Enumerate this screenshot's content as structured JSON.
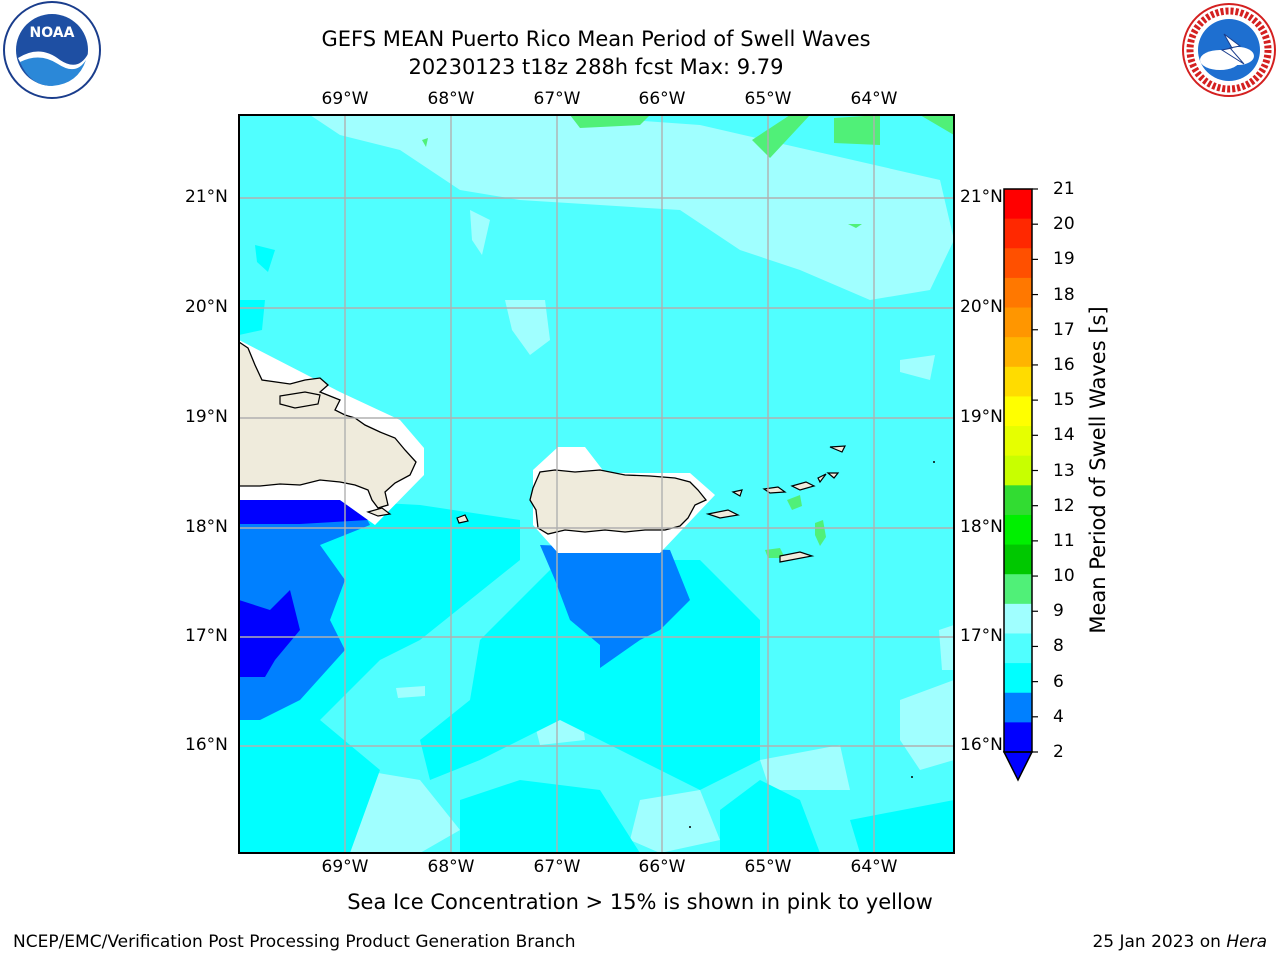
{
  "title": {
    "line1": "GEFS MEAN Puerto Rico Mean Period of Swell Waves",
    "line2": "20230123 t18z 288h fcst   Max: 9.79"
  },
  "map": {
    "lon_ticks": [
      "69°W",
      "68°W",
      "67°W",
      "66°W",
      "65°W",
      "64°W"
    ],
    "lat_ticks": [
      "21°N",
      "20°N",
      "19°N",
      "18°N",
      "17°N",
      "16°N"
    ],
    "ocean_color": "#00ffff",
    "land_color": "#efebdc"
  },
  "colorbar": {
    "label": "Mean Period of Swell Waves [s]",
    "ticks": [
      "21",
      "20",
      "19",
      "18",
      "17",
      "16",
      "15",
      "14",
      "13",
      "12",
      "11",
      "10",
      "9",
      "8",
      "6",
      "4",
      "2"
    ],
    "colors_top_to_bottom": [
      "#ff0000",
      "#ff2800",
      "#ff5000",
      "#ff7800",
      "#ff9600",
      "#ffb400",
      "#ffdc00",
      "#ffff00",
      "#e6ff00",
      "#c8ff00",
      "#32dc32",
      "#00f000",
      "#00c800",
      "#50f078",
      "#a0ffff",
      "#50ffff",
      "#00ffff",
      "#0080ff",
      "#0000ff"
    ],
    "extend_color": "#0000ff"
  },
  "note": "Sea Ice Concentration > 15% is shown in pink to yellow",
  "footer": {
    "left": "NCEP/EMC/Verification Post Processing Product Generation Branch",
    "date": "25 Jan 2023 on ",
    "machine": "Hera"
  },
  "logos": {
    "left_text": "NOAA",
    "right_text": "NATIONAL WEATHER SERVICE"
  }
}
